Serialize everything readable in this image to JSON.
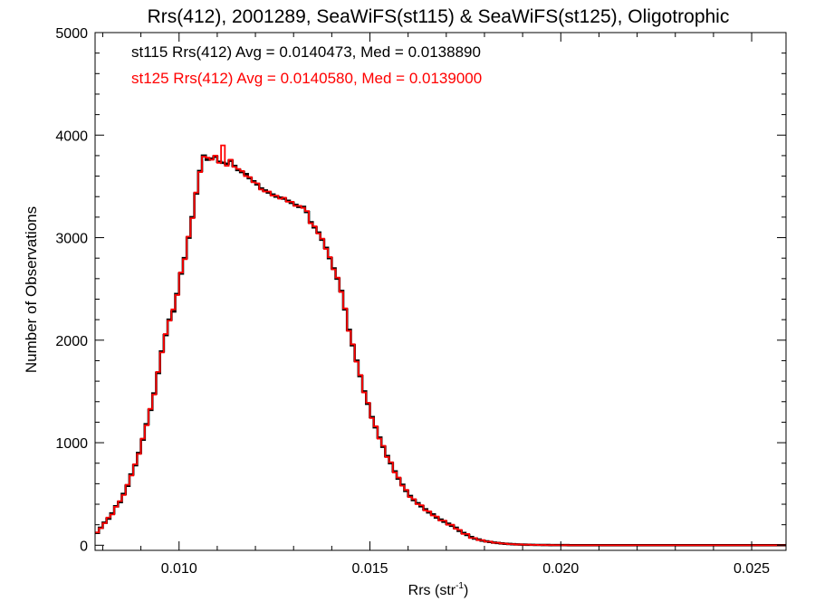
{
  "chart_data": {
    "type": "line",
    "title": "Rrs(412), 2001289, SeaWiFS(st115) & SeaWiFS(st125), Oligotrophic",
    "xlabel_main": "Rrs (str",
    "xlabel_sup": "-1",
    "xlabel_close": ")",
    "ylabel": "Number of Observations",
    "xlim": [
      0.0078,
      0.0259
    ],
    "ylim": [
      -50,
      5000
    ],
    "x_ticks": [
      {
        "value": 0.01,
        "label": "0.010"
      },
      {
        "value": 0.015,
        "label": "0.015"
      },
      {
        "value": 0.02,
        "label": "0.020"
      },
      {
        "value": 0.025,
        "label": "0.025"
      }
    ],
    "y_ticks": [
      {
        "value": 0,
        "label": "0"
      },
      {
        "value": 1000,
        "label": "1000"
      },
      {
        "value": 2000,
        "label": "2000"
      },
      {
        "value": 3000,
        "label": "3000"
      },
      {
        "value": 4000,
        "label": "4000"
      },
      {
        "value": 5000,
        "label": "5000"
      }
    ],
    "bin_width": 0.0001,
    "series": [
      {
        "name": "st115",
        "color": "#000000",
        "annotation": "st115 Rrs(412) Avg = 0.0140473, Med = 0.0138890",
        "x_start": 0.0078,
        "values": [
          120,
          170,
          220,
          260,
          310,
          380,
          420,
          500,
          580,
          690,
          780,
          900,
          1030,
          1180,
          1320,
          1480,
          1680,
          1890,
          2050,
          2200,
          2280,
          2450,
          2650,
          2800,
          3000,
          3200,
          3430,
          3650,
          3800,
          3760,
          3770,
          3790,
          3740,
          3730,
          3720,
          3750,
          3700,
          3660,
          3640,
          3620,
          3580,
          3550,
          3520,
          3480,
          3460,
          3440,
          3420,
          3400,
          3390,
          3380,
          3360,
          3340,
          3320,
          3300,
          3300,
          3250,
          3150,
          3100,
          3050,
          2980,
          2900,
          2800,
          2700,
          2600,
          2480,
          2300,
          2100,
          1950,
          1800,
          1650,
          1500,
          1380,
          1250,
          1150,
          1050,
          960,
          870,
          800,
          720,
          650,
          590,
          530,
          480,
          440,
          410,
          380,
          350,
          320,
          300,
          270,
          250,
          230,
          210,
          190,
          170,
          140,
          120,
          100,
          80,
          65,
          55,
          45,
          38,
          32,
          26,
          22,
          18,
          15,
          12,
          10,
          8,
          7,
          6,
          5,
          4,
          3,
          3,
          2,
          2,
          1,
          1,
          1,
          1,
          1,
          0,
          0,
          0,
          0,
          0,
          0,
          0,
          0,
          0,
          0,
          0,
          0,
          0,
          0,
          0,
          0,
          0,
          0,
          0,
          0,
          0,
          0,
          0,
          0,
          0,
          0,
          0,
          0,
          0,
          0,
          0,
          0,
          0,
          0,
          0,
          0,
          0,
          0,
          0,
          0,
          0,
          0,
          0,
          0,
          0,
          0,
          0,
          0,
          0,
          0,
          0,
          0,
          0,
          0,
          0,
          0,
          0,
          0
        ]
      },
      {
        "name": "st125",
        "color": "#ff0000",
        "annotation": "st125 Rrs(412) Avg = 0.0140580, Med = 0.0139000",
        "x_start": 0.0078,
        "values": [
          125,
          165,
          215,
          270,
          300,
          375,
          430,
          490,
          590,
          680,
          790,
          890,
          1040,
          1170,
          1330,
          1470,
          1690,
          1880,
          2060,
          2190,
          2300,
          2440,
          2660,
          2790,
          3010,
          3190,
          3440,
          3640,
          3790,
          3780,
          3760,
          3800,
          3730,
          3900,
          3700,
          3760,
          3690,
          3670,
          3650,
          3600,
          3590,
          3540,
          3530,
          3470,
          3450,
          3450,
          3410,
          3410,
          3380,
          3390,
          3350,
          3350,
          3310,
          3310,
          3290,
          3260,
          3140,
          3110,
          3040,
          2990,
          2890,
          2810,
          2690,
          2610,
          2470,
          2310,
          2090,
          1960,
          1790,
          1660,
          1490,
          1390,
          1240,
          1160,
          1040,
          970,
          860,
          810,
          710,
          660,
          580,
          540,
          470,
          450,
          400,
          390,
          340,
          330,
          290,
          280,
          240,
          240,
          200,
          200,
          160,
          150,
          110,
          110,
          70,
          70,
          50,
          50,
          35,
          35,
          24,
          24,
          17,
          16,
          11,
          11,
          7,
          8,
          5,
          6,
          3,
          4,
          2,
          3,
          1,
          2,
          1,
          1,
          0,
          1,
          0,
          0,
          0,
          0,
          0,
          0,
          0,
          0,
          0,
          0,
          0,
          0,
          0,
          0,
          0,
          0,
          0,
          0,
          0,
          0,
          0,
          0,
          0,
          0,
          0,
          0,
          0,
          0,
          0,
          0,
          0,
          0,
          0,
          0,
          0,
          0,
          0,
          0,
          0,
          0,
          0,
          0,
          0,
          0,
          0,
          0,
          0,
          0,
          0,
          0,
          0,
          0,
          0,
          0,
          0,
          0,
          0,
          0,
          0,
          0
        ]
      }
    ]
  }
}
